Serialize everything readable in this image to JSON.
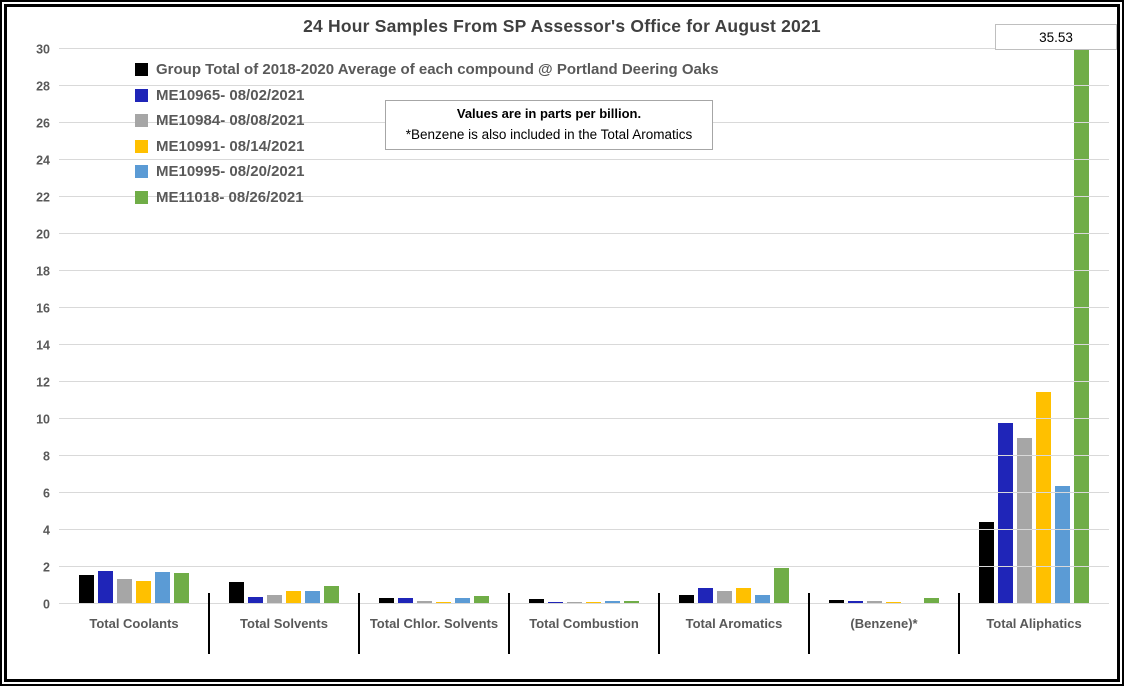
{
  "title": "24 Hour Samples From SP Assessor's Office for August 2021",
  "annotation": {
    "line1": "Values are in parts per billion.",
    "line2": "*Benzene is also included in the Total Aromatics"
  },
  "chart_data": {
    "type": "bar",
    "title": "24 Hour Samples From SP Assessor's Office for August 2021",
    "unit": "parts per billion",
    "categories": [
      "Total Coolants",
      "Total Solvents",
      "Total Chlor. Solvents",
      "Total Combustion",
      "Total Aromatics",
      "(Benzene)*",
      "Total Aliphatics"
    ],
    "series": [
      {
        "name": "Group Total of 2018-2020 Average of each compound @ Portland Deering Oaks",
        "color": "#000000",
        "values": [
          1.55,
          1.2,
          0.35,
          0.25,
          0.5,
          0.2,
          4.45
        ]
      },
      {
        "name": "ME10965- 08/02/2021",
        "color": "#1f25b8",
        "values": [
          1.8,
          0.4,
          0.3,
          0.1,
          0.85,
          0.15,
          9.8
        ]
      },
      {
        "name": "ME10984- 08/08/2021",
        "color": "#a6a6a6",
        "values": [
          1.35,
          0.5,
          0.17,
          0.1,
          0.7,
          0.17,
          9.0
        ]
      },
      {
        "name": "ME10991- 08/14/2021",
        "color": "#ffc000",
        "values": [
          1.25,
          0.7,
          0.12,
          0.1,
          0.87,
          0.12,
          11.45
        ]
      },
      {
        "name": "ME10995- 08/20/2021",
        "color": "#5b9bd5",
        "values": [
          1.75,
          0.7,
          0.33,
          0.17,
          0.5,
          0.07,
          6.4
        ]
      },
      {
        "name": "ME11018- 08/26/2021",
        "color": "#70ad47",
        "values": [
          1.65,
          1.0,
          0.45,
          0.15,
          1.93,
          0.33,
          35.53
        ]
      }
    ],
    "ylim": [
      0,
      30
    ],
    "ytick_step": 2,
    "grid": true,
    "legend_position": "top-left",
    "data_label": {
      "text": "35.53",
      "series": "ME11018- 08/26/2021",
      "category": "Total Aliphatics"
    }
  }
}
